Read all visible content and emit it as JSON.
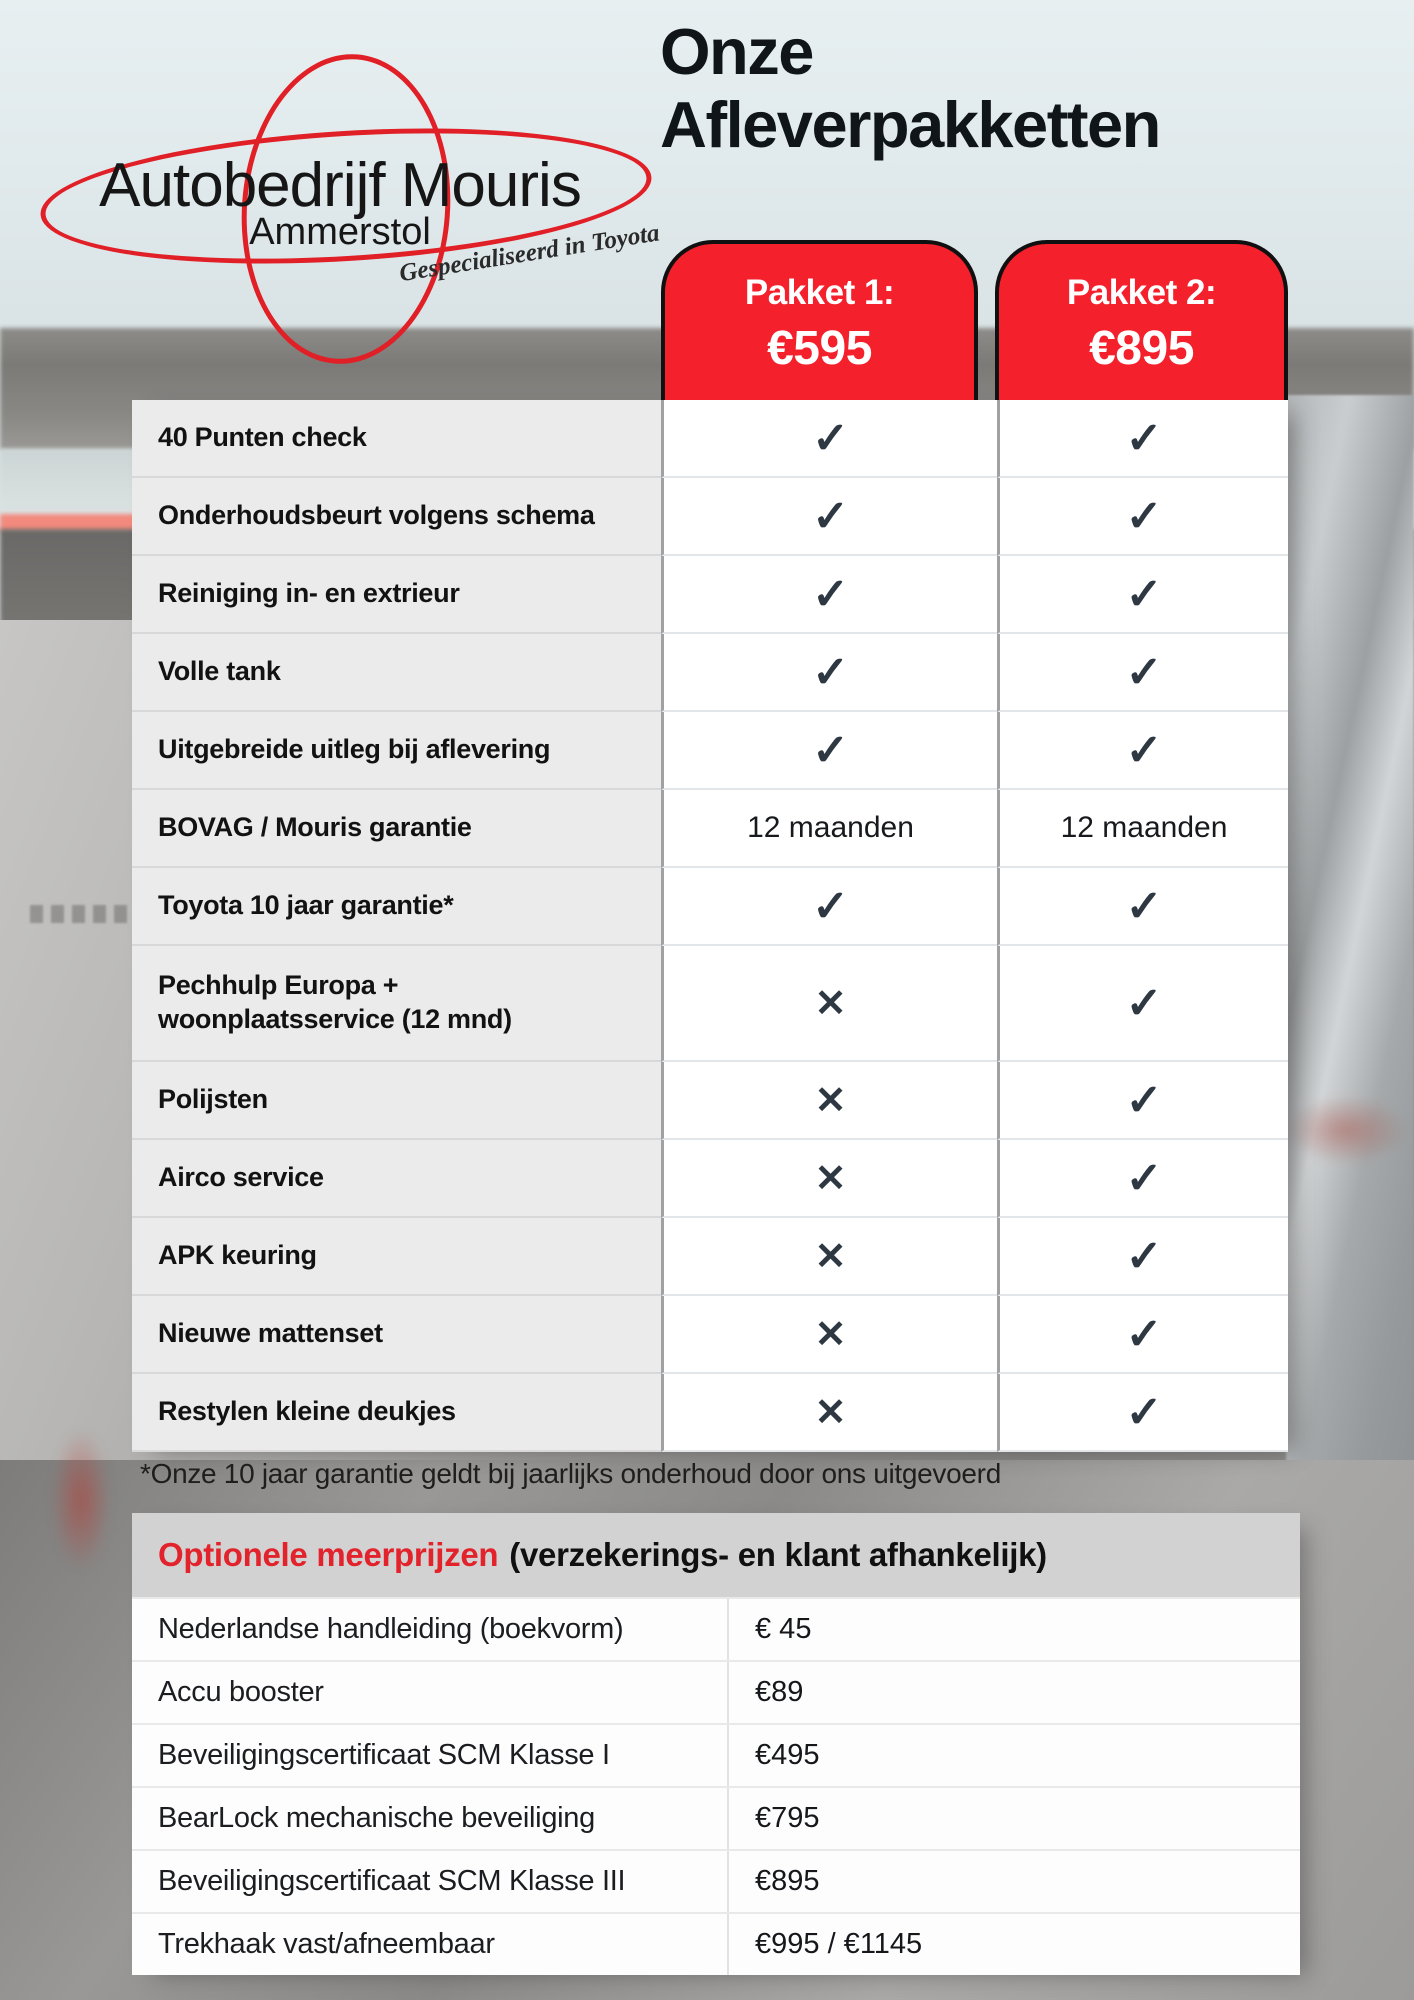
{
  "logo": {
    "name": "Autobedrijf Mouris",
    "city": "Ammerstol",
    "tagline": "Gespecialiseerd in Toyota"
  },
  "title": {
    "line1": "Onze",
    "line2": "Afleverpakketten"
  },
  "packages": [
    {
      "name": "Pakket 1:",
      "price": "€595"
    },
    {
      "name": "Pakket 2:",
      "price": "€895"
    }
  ],
  "comparison": {
    "rows": [
      {
        "label": "40 Punten check",
        "p1": "✓",
        "p2": "✓"
      },
      {
        "label": "Onderhoudsbeurt volgens schema",
        "p1": "✓",
        "p2": "✓"
      },
      {
        "label": "Reiniging in- en extrieur",
        "p1": "✓",
        "p2": "✓"
      },
      {
        "label": "Volle tank",
        "p1": "✓",
        "p2": "✓"
      },
      {
        "label": "Uitgebreide uitleg bij aflevering",
        "p1": "✓",
        "p2": "✓"
      },
      {
        "label": "BOVAG / Mouris garantie",
        "p1": "12 maanden",
        "p2": "12 maanden"
      },
      {
        "label": "Toyota 10 jaar garantie*",
        "p1": "✓",
        "p2": "✓"
      },
      {
        "label": "Pechhulp Europa +\nwoonplaatsservice (12 mnd)",
        "p1": "✕",
        "p2": "✓"
      },
      {
        "label": "Polijsten",
        "p1": "✕",
        "p2": "✓"
      },
      {
        "label": "Airco service",
        "p1": "✕",
        "p2": "✓"
      },
      {
        "label": "APK keuring",
        "p1": "✕",
        "p2": "✓"
      },
      {
        "label": "Nieuwe mattenset",
        "p1": "✕",
        "p2": "✓"
      },
      {
        "label": "Restylen kleine deukjes",
        "p1": "✕",
        "p2": "✓"
      }
    ]
  },
  "footnote": "*Onze 10 jaar garantie geldt bij jaarlijks onderhoud door ons uitgevoerd",
  "options": {
    "title": "Optionele meerprijzen",
    "subtitle": "(verzekerings- en klant afhankelijk)",
    "rows": [
      {
        "label": "Nederlandse handleiding (boekvorm)",
        "price": "€ 45"
      },
      {
        "label": "Accu booster",
        "price": "€89"
      },
      {
        "label": "Beveiligingscertificaat SCM Klasse I",
        "price": "€495"
      },
      {
        "label": "BearLock mechanische beveiliging",
        "price": "€795"
      },
      {
        "label": "Beveiligingscertificaat SCM Klasse III",
        "price": "€895"
      },
      {
        "label": "Trekhaak vast/afneembaar",
        "price": "€995 / €1145"
      }
    ]
  },
  "colors": {
    "tab_red": "#f4202b",
    "logo_red": "#e01f26",
    "options_title_red": "#e2232c",
    "mark_dark": "#2e3842",
    "label_gray": "#ebebeb",
    "header_gray": "#d2d2d2"
  }
}
